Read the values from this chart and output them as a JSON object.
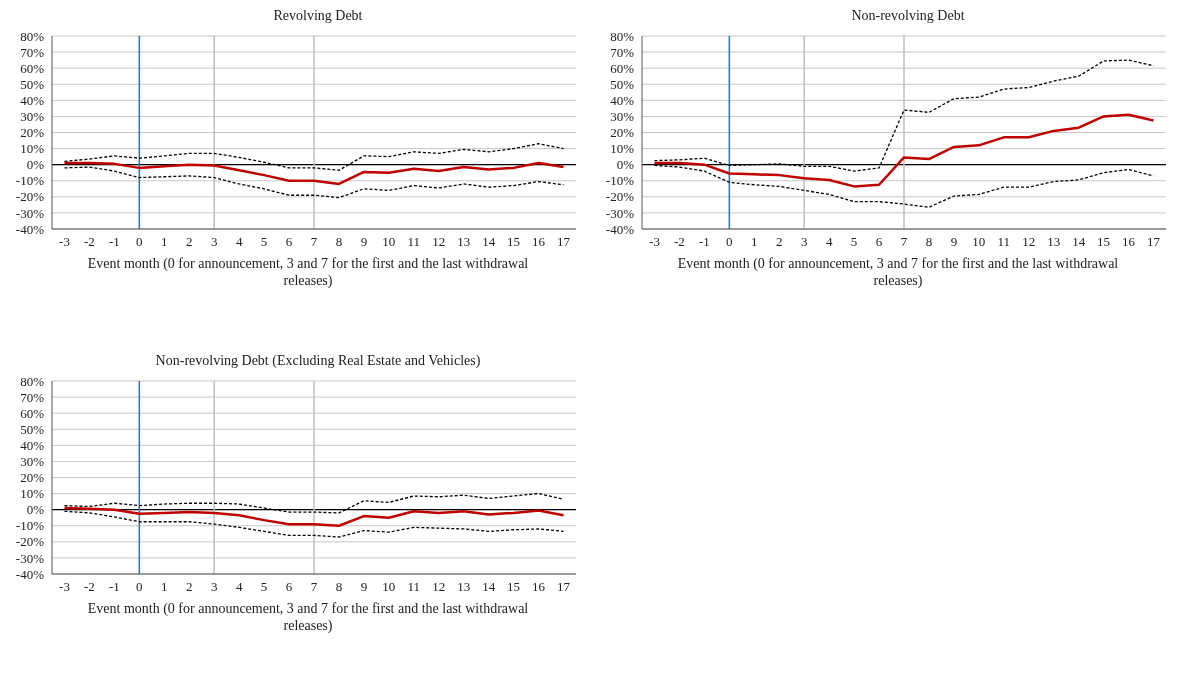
{
  "chart_data": [
    {
      "type": "line",
      "title": "Revolving Debt",
      "xlabel": "Event month (0 for announcement, 3 and 7 for the first and the last withdrawal releases)",
      "x": [
        -3,
        -2,
        -1,
        0,
        1,
        2,
        3,
        4,
        5,
        6,
        7,
        8,
        9,
        10,
        11,
        12,
        13,
        14,
        15,
        16,
        17
      ],
      "xlim": [
        -3.5,
        17.5
      ],
      "xticks": [
        -3,
        -2,
        -1,
        0,
        1,
        2,
        3,
        4,
        5,
        6,
        7,
        8,
        9,
        10,
        11,
        12,
        13,
        14,
        15,
        16,
        17
      ],
      "ylim": [
        -40,
        80
      ],
      "yticks": [
        {
          "value": -40,
          "label": "-40%"
        },
        {
          "value": -30,
          "label": "-30%"
        },
        {
          "value": -20,
          "label": "-20%"
        },
        {
          "value": -10,
          "label": "-10%"
        },
        {
          "value": 0,
          "label": "0%"
        },
        {
          "value": 10,
          "label": "10%"
        },
        {
          "value": 20,
          "label": "20%"
        },
        {
          "value": 30,
          "label": "30%"
        },
        {
          "value": 40,
          "label": "40%"
        },
        {
          "value": 50,
          "label": "50%"
        },
        {
          "value": 60,
          "label": "60%"
        },
        {
          "value": 70,
          "label": "70%"
        },
        {
          "value": 80,
          "label": "80%"
        }
      ],
      "grid": "y",
      "legend": false,
      "marker": "none",
      "ref_lines": [
        {
          "axis": "y",
          "value": 0,
          "color": "#000000"
        },
        {
          "axis": "x",
          "value": 0,
          "color": "#2e75b6"
        },
        {
          "axis": "x",
          "value": 3,
          "color": "#bfbfbf"
        },
        {
          "axis": "x",
          "value": 7,
          "color": "#bfbfbf"
        }
      ],
      "series": [
        {
          "color": "#000000",
          "line_style": "dashed",
          "values": [
            2,
            3.5,
            5.5,
            4,
            5.5,
            7,
            7,
            4.5,
            1.5,
            -2,
            -2,
            -3.5,
            5.5,
            5,
            8,
            7,
            9.5,
            8,
            10,
            13,
            10
          ]
        },
        {
          "color": "#000000",
          "line_style": "dashed",
          "values": [
            -2,
            -1.5,
            -4,
            -8,
            -7.5,
            -7,
            -8,
            -12,
            -15,
            -19,
            -19,
            -20.5,
            -15,
            -16,
            -13,
            -14.5,
            -12,
            -14,
            -13,
            -10.5,
            -12.5
          ]
        },
        {
          "color": "#c00000",
          "line_style": "solid",
          "values": [
            1,
            1,
            0.5,
            -2,
            -1,
            0,
            -0.5,
            -3.5,
            -6.5,
            -10,
            -10,
            -12,
            -4.5,
            -5,
            -2.5,
            -4,
            -1.5,
            -3,
            -2,
            1,
            -1.5
          ]
        }
      ]
    },
    {
      "type": "line",
      "title": "Non-revolving Debt",
      "xlabel": "Event month (0 for announcement, 3 and 7 for the first and the last withdrawal releases)",
      "x": [
        -3,
        -2,
        -1,
        0,
        1,
        2,
        3,
        4,
        5,
        6,
        7,
        8,
        9,
        10,
        11,
        12,
        13,
        14,
        15,
        16,
        17
      ],
      "xlim": [
        -3.5,
        17.5
      ],
      "xticks": [
        -3,
        -2,
        -1,
        0,
        1,
        2,
        3,
        4,
        5,
        6,
        7,
        8,
        9,
        10,
        11,
        12,
        13,
        14,
        15,
        16,
        17
      ],
      "ylim": [
        -40,
        80
      ],
      "yticks": [
        {
          "value": -40,
          "label": "-40%"
        },
        {
          "value": -30,
          "label": "-30%"
        },
        {
          "value": -20,
          "label": "-20%"
        },
        {
          "value": -10,
          "label": "-10%"
        },
        {
          "value": 0,
          "label": "0%"
        },
        {
          "value": 10,
          "label": "10%"
        },
        {
          "value": 20,
          "label": "20%"
        },
        {
          "value": 30,
          "label": "30%"
        },
        {
          "value": 40,
          "label": "40%"
        },
        {
          "value": 50,
          "label": "50%"
        },
        {
          "value": 60,
          "label": "60%"
        },
        {
          "value": 70,
          "label": "70%"
        },
        {
          "value": 80,
          "label": "80%"
        }
      ],
      "grid": "y",
      "legend": false,
      "marker": "none",
      "ref_lines": [
        {
          "axis": "y",
          "value": 0,
          "color": "#000000"
        },
        {
          "axis": "x",
          "value": 0,
          "color": "#2e75b6"
        },
        {
          "axis": "x",
          "value": 3,
          "color": "#bfbfbf"
        },
        {
          "axis": "x",
          "value": 7,
          "color": "#bfbfbf"
        }
      ],
      "series": [
        {
          "color": "#000000",
          "line_style": "dashed",
          "values": [
            2.5,
            3,
            4,
            -0.5,
            0,
            0.5,
            -1,
            -1,
            -4,
            -2,
            34,
            32.5,
            41,
            42,
            47,
            48,
            52,
            55,
            64.5,
            65,
            61.5
          ]
        },
        {
          "color": "#000000",
          "line_style": "dashed",
          "values": [
            -0.5,
            -1.5,
            -4,
            -11,
            -12.5,
            -13.5,
            -16,
            -18.5,
            -23,
            -23,
            -24.5,
            -26.5,
            -19.5,
            -18.5,
            -14,
            -14,
            -10.5,
            -9.5,
            -5,
            -3,
            -7
          ]
        },
        {
          "color": "#c00000",
          "line_style": "solid",
          "values": [
            1,
            1,
            0,
            -5.5,
            -6,
            -6.5,
            -8.5,
            -9.5,
            -13.5,
            -12.5,
            4.5,
            3.5,
            11,
            12,
            17,
            17,
            21,
            23,
            30,
            31,
            27.5
          ]
        }
      ]
    },
    {
      "type": "line",
      "title": "Non-revolving Debt (Excluding Real Estate and Vehicles)",
      "xlabel": "Event month (0 for announcement, 3 and 7 for the first and the last withdrawal releases)",
      "x": [
        -3,
        -2,
        -1,
        0,
        1,
        2,
        3,
        4,
        5,
        6,
        7,
        8,
        9,
        10,
        11,
        12,
        13,
        14,
        15,
        16,
        17
      ],
      "xlim": [
        -3.5,
        17.5
      ],
      "xticks": [
        -3,
        -2,
        -1,
        0,
        1,
        2,
        3,
        4,
        5,
        6,
        7,
        8,
        9,
        10,
        11,
        12,
        13,
        14,
        15,
        16,
        17
      ],
      "ylim": [
        -40,
        80
      ],
      "yticks": [
        {
          "value": -40,
          "label": "-40%"
        },
        {
          "value": -30,
          "label": "-30%"
        },
        {
          "value": -20,
          "label": "-20%"
        },
        {
          "value": -10,
          "label": "-10%"
        },
        {
          "value": 0,
          "label": "0%"
        },
        {
          "value": 10,
          "label": "10%"
        },
        {
          "value": 20,
          "label": "20%"
        },
        {
          "value": 30,
          "label": "30%"
        },
        {
          "value": 40,
          "label": "40%"
        },
        {
          "value": 50,
          "label": "50%"
        },
        {
          "value": 60,
          "label": "60%"
        },
        {
          "value": 70,
          "label": "70%"
        },
        {
          "value": 80,
          "label": "80%"
        }
      ],
      "grid": "y",
      "legend": false,
      "marker": "none",
      "ref_lines": [
        {
          "axis": "y",
          "value": 0,
          "color": "#000000"
        },
        {
          "axis": "x",
          "value": 0,
          "color": "#2e75b6"
        },
        {
          "axis": "x",
          "value": 3,
          "color": "#bfbfbf"
        },
        {
          "axis": "x",
          "value": 7,
          "color": "#bfbfbf"
        }
      ],
      "series": [
        {
          "color": "#000000",
          "line_style": "dashed",
          "values": [
            2.5,
            2,
            4,
            2.5,
            3.5,
            4,
            4,
            3.5,
            1,
            -1.5,
            -1.5,
            -2,
            5.5,
            4.5,
            8.5,
            8,
            9,
            7,
            8.5,
            10,
            6.5
          ]
        },
        {
          "color": "#000000",
          "line_style": "dashed",
          "values": [
            -1,
            -2,
            -4.5,
            -7.5,
            -7.5,
            -7.5,
            -9,
            -11,
            -13.5,
            -16,
            -16,
            -17,
            -13,
            -14,
            -11,
            -11.5,
            -12,
            -13.5,
            -12.5,
            -12,
            -13.5
          ]
        },
        {
          "color": "#c00000",
          "line_style": "solid",
          "values": [
            1,
            0.5,
            0,
            -2.5,
            -2,
            -1.5,
            -2,
            -3.5,
            -6.5,
            -9,
            -9,
            -10,
            -4,
            -5,
            -1,
            -2,
            -1,
            -3,
            -2,
            -0.5,
            -3.5
          ]
        }
      ]
    }
  ]
}
